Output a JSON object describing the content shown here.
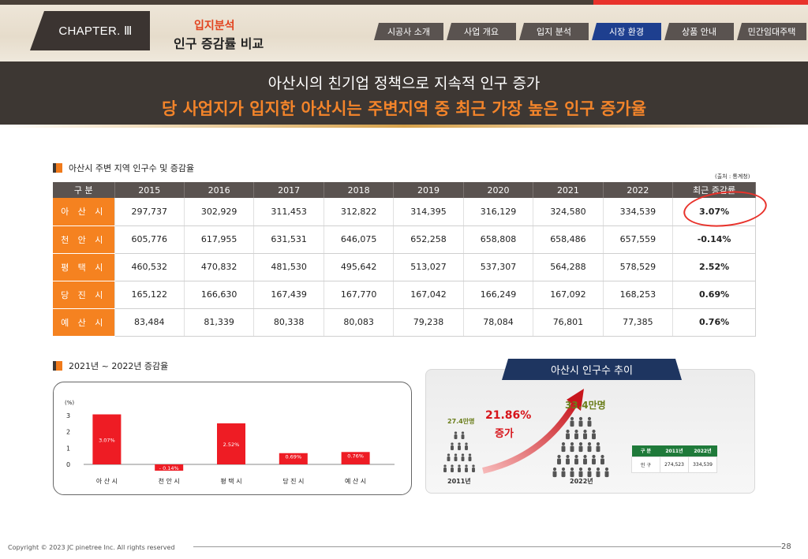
{
  "header": {
    "chapter": "CHAPTER. Ⅲ",
    "section_sub": "입지분석",
    "section_title": "인구 증감률 비교",
    "nav": [
      "시공사 소개",
      "사업 개요",
      "입지 분석",
      "시장 환경",
      "상품 안내",
      "민간임대주택"
    ],
    "nav_active": 3
  },
  "banner": {
    "line1": "아산시의 친기업 정책으로 지속적 인구 증가",
    "line2": "당 사업지가 입지한 아산시는 주변지역 중 최근 가장 높은 인구 증가율"
  },
  "population_table": {
    "heading": "아산시 주변 지역 인구수 및 증감율",
    "source": "(출처 : 통계청)",
    "columns": [
      "구 분",
      "2015",
      "2016",
      "2017",
      "2018",
      "2019",
      "2020",
      "2021",
      "2022",
      "최근 증감률"
    ],
    "rows": [
      {
        "name": "아 산 시",
        "values": [
          "297,737",
          "302,929",
          "311,453",
          "312,822",
          "314,395",
          "316,129",
          "324,580",
          "334,539"
        ],
        "rate": "3.07%"
      },
      {
        "name": "천 안 시",
        "values": [
          "605,776",
          "617,955",
          "631,531",
          "646,075",
          "652,258",
          "658,808",
          "658,486",
          "657,559"
        ],
        "rate": "-0.14%"
      },
      {
        "name": "평 택 시",
        "values": [
          "460,532",
          "470,832",
          "481,530",
          "495,642",
          "513,027",
          "537,307",
          "564,288",
          "578,529"
        ],
        "rate": "2.52%"
      },
      {
        "name": "당 진 시",
        "values": [
          "165,122",
          "166,630",
          "167,439",
          "167,770",
          "167,042",
          "166,249",
          "167,092",
          "168,253"
        ],
        "rate": "0.69%"
      },
      {
        "name": "예 산 시",
        "values": [
          "83,484",
          "81,339",
          "80,338",
          "80,083",
          "79,238",
          "78,084",
          "76,801",
          "77,385"
        ],
        "rate": "0.76%"
      }
    ]
  },
  "growth_chart": {
    "heading": "2021년 ~ 2022년 증감율",
    "unit": "(%)",
    "ticks": [
      "3",
      "2",
      "1",
      "0"
    ],
    "bar_color": "#ee1c24"
  },
  "chart_data": {
    "type": "bar",
    "categories": [
      "아 산 시",
      "천 안 시",
      "평 택 시",
      "당 진 시",
      "예 산 시"
    ],
    "values": [
      3.07,
      -0.14,
      2.52,
      0.69,
      0.76
    ],
    "value_labels": [
      "3.07%",
      "- 0.14%",
      "2.52%",
      "0.69%",
      "0.76%"
    ],
    "title": "",
    "xlabel": "",
    "ylabel": "(%)",
    "ylim": [
      -0.3,
      3
    ]
  },
  "asan_trend": {
    "title": "아산시 인구수 추이",
    "pop_2011": "27.4만명",
    "pop_2022": "33.4만명",
    "growth_pct": "21.86%",
    "growth_word": "증가",
    "year_2011": "2011년",
    "year_2022": "2022년",
    "small_table": {
      "headers": [
        "구 분",
        "2011년",
        "2022년"
      ],
      "row_label": "인 구",
      "values": [
        "274,523",
        "334,539"
      ]
    }
  },
  "colors": {
    "accent_orange": "#f58220",
    "nav_active": "#1e3f8f",
    "dark_brown": "#3d3733",
    "banner_orange": "#f3842a"
  },
  "footer": {
    "copyright": "Copyright © 2023 JC pinetree Inc. All rights reserved",
    "page": "28"
  }
}
